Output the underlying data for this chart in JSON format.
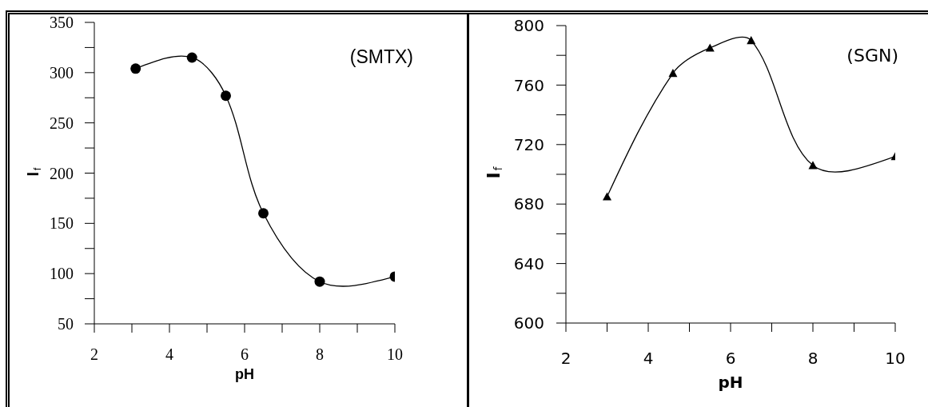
{
  "chart_data": [
    {
      "type": "line",
      "xlabel": "pH",
      "ylabel": "I$_{f}$",
      "annotations": [
        "(SMTX)"
      ],
      "x": [
        3.1,
        4.6,
        5.5,
        6.5,
        8,
        10
      ],
      "values": [
        304,
        315,
        277,
        160,
        92,
        97
      ],
      "color": "#000000",
      "marker": "circle",
      "line_style": "solid",
      "xlim": [
        2,
        10
      ],
      "xticks": [
        2,
        {
          "value": 3,
          "label": null
        },
        4,
        {
          "value": 5,
          "label": null
        },
        6,
        {
          "value": 7,
          "label": null
        },
        8,
        {
          "value": 9,
          "label": null
        },
        10
      ],
      "ylim": [
        50,
        350
      ],
      "yticks": [
        50,
        {
          "value": 75,
          "label": null
        },
        100,
        {
          "value": 125,
          "label": null
        },
        150,
        {
          "value": 175,
          "label": null
        },
        200,
        {
          "value": 225,
          "label": null
        },
        250,
        {
          "value": 275,
          "label": null
        },
        300,
        {
          "value": 325,
          "label": null
        },
        350
      ]
    },
    {
      "type": "line",
      "xlabel": "pH",
      "ylabel": "I$_{f}$",
      "annotations": [
        "(SGN)"
      ],
      "x": [
        3,
        4.6,
        5.5,
        6.5,
        8,
        10
      ],
      "values": [
        685,
        768,
        785,
        790,
        706,
        712
      ],
      "color": "#000000",
      "marker": "triangle",
      "line_style": "solid",
      "xlim": [
        2,
        10
      ],
      "xticks": [
        2,
        {
          "value": 3,
          "label": null
        },
        4,
        {
          "value": 5,
          "label": null
        },
        6,
        {
          "value": 7,
          "label": null
        },
        8,
        {
          "value": 9,
          "label": null
        },
        10
      ],
      "ylim": [
        600,
        800
      ],
      "yticks": [
        600,
        {
          "value": 620,
          "label": null
        },
        640,
        {
          "value": 660,
          "label": null
        },
        680,
        {
          "value": 700,
          "label": null
        },
        720,
        {
          "value": 740,
          "label": null
        },
        760,
        {
          "value": 780,
          "label": null
        },
        800
      ]
    }
  ]
}
